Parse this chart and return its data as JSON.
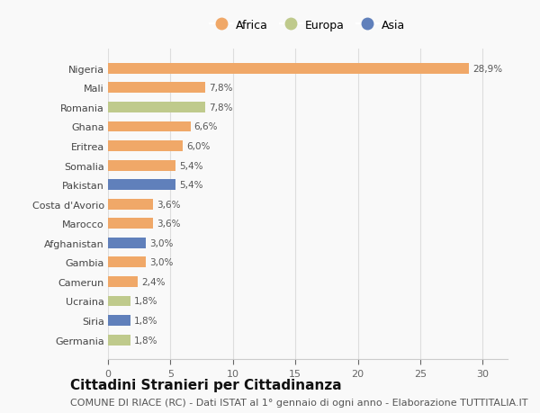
{
  "categories": [
    "Nigeria",
    "Mali",
    "Romania",
    "Ghana",
    "Eritrea",
    "Somalia",
    "Pakistan",
    "Costa d'Avorio",
    "Marocco",
    "Afghanistan",
    "Gambia",
    "Camerun",
    "Ucraina",
    "Siria",
    "Germania"
  ],
  "values": [
    28.9,
    7.8,
    7.8,
    6.6,
    6.0,
    5.4,
    5.4,
    3.6,
    3.6,
    3.0,
    3.0,
    2.4,
    1.8,
    1.8,
    1.8
  ],
  "labels": [
    "28,9%",
    "7,8%",
    "7,8%",
    "6,6%",
    "6,0%",
    "5,4%",
    "5,4%",
    "3,6%",
    "3,6%",
    "3,0%",
    "3,0%",
    "2,4%",
    "1,8%",
    "1,8%",
    "1,8%"
  ],
  "continents": [
    "Africa",
    "Africa",
    "Europa",
    "Africa",
    "Africa",
    "Africa",
    "Asia",
    "Africa",
    "Africa",
    "Asia",
    "Africa",
    "Africa",
    "Europa",
    "Asia",
    "Europa"
  ],
  "colors": {
    "Africa": "#F0A868",
    "Europa": "#BFCA8C",
    "Asia": "#6080BB"
  },
  "legend_labels": [
    "Africa",
    "Europa",
    "Asia"
  ],
  "xlim": [
    0,
    32
  ],
  "xticks": [
    0,
    5,
    10,
    15,
    20,
    25,
    30
  ],
  "title": "Cittadini Stranieri per Cittadinanza",
  "subtitle": "COMUNE DI RIACE (RC) - Dati ISTAT al 1° gennaio di ogni anno - Elaborazione TUTTITALIA.IT",
  "background_color": "#f9f9f9",
  "bar_height": 0.55,
  "title_fontsize": 11,
  "subtitle_fontsize": 8,
  "label_fontsize": 7.5,
  "ytick_fontsize": 8,
  "xtick_fontsize": 8,
  "legend_fontsize": 9
}
